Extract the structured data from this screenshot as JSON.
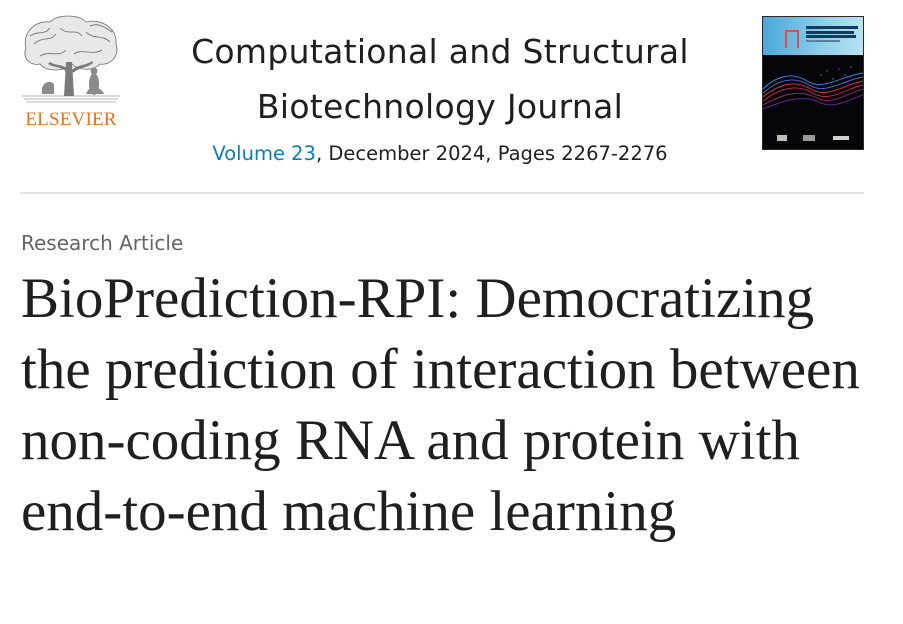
{
  "publisher": {
    "name": "ELSEVIER",
    "logo_icon": "elsevier-tree-icon",
    "brand_color": "#e9711c"
  },
  "journal": {
    "title_line1": "Computational and Structural",
    "title_line2": "Biotechnology Journal",
    "volume_label": "Volume 23",
    "issue_info": ", December 2024, Pages 2267-2276",
    "link_color": "#0c7dbb",
    "cover_icon": "journal-cover-image"
  },
  "article": {
    "type": "Research Article",
    "title": "BioPrediction-RPI: Democratizing the prediction of interaction between non-coding RNA and protein with end-to-end machine learning"
  }
}
